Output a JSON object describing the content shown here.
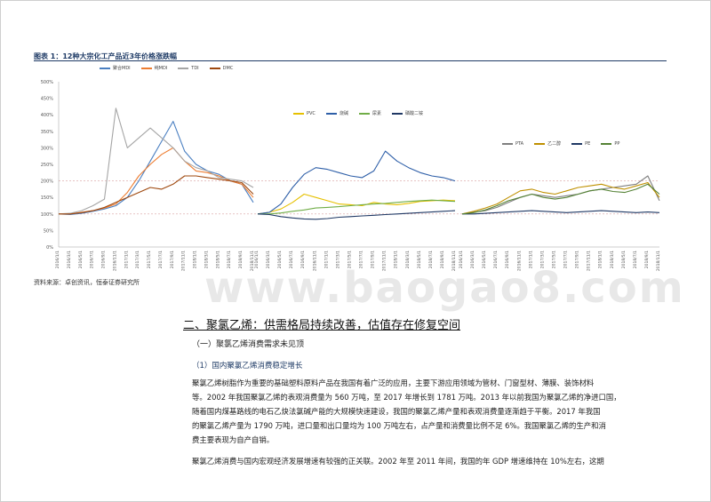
{
  "figure": {
    "title": "图表 1：12种大宗化工产品近3年价格涨跌幅",
    "source": "资料来源：卓创资讯，恒泰证券研究所"
  },
  "chart_data": [
    {
      "type": "line",
      "panel": "left",
      "ylim": [
        0,
        500
      ],
      "yticks": [
        "0%",
        "50%",
        "100%",
        "150%",
        "200%",
        "250%",
        "300%",
        "350%",
        "400%",
        "450%",
        "500%"
      ],
      "categories": [
        "2016/1/1",
        "2016/3/1",
        "2016/5/1",
        "2016/7/1",
        "2016/9/1",
        "2016/11/1",
        "2017/1/1",
        "2017/3/1",
        "2017/5/1",
        "2017/7/1",
        "2017/9/1",
        "2017/11/1",
        "2018/1/1",
        "2018/3/1",
        "2018/5/1",
        "2018/7/1",
        "2018/9/1",
        "2018/11/1"
      ],
      "series": [
        {
          "name": "聚合MDI",
          "color": "#4a7fc1",
          "values": [
            100,
            98,
            102,
            108,
            115,
            125,
            150,
            200,
            260,
            320,
            380,
            290,
            250,
            230,
            220,
            200,
            190,
            135
          ]
        },
        {
          "name": "纯MDI",
          "color": "#ed7d31",
          "values": [
            100,
            100,
            105,
            110,
            118,
            130,
            165,
            215,
            250,
            280,
            300,
            260,
            230,
            225,
            215,
            200,
            190,
            150
          ]
        },
        {
          "name": "TDI",
          "color": "#a5a5a5",
          "values": [
            100,
            102,
            110,
            125,
            145,
            420,
            300,
            330,
            360,
            330,
            300,
            260,
            240,
            230,
            210,
            205,
            200,
            180
          ]
        },
        {
          "name": "DMC",
          "color": "#9e480e",
          "values": [
            100,
            100,
            104,
            110,
            120,
            135,
            150,
            165,
            180,
            175,
            190,
            215,
            215,
            210,
            205,
            200,
            195,
            160
          ]
        }
      ]
    },
    {
      "type": "line",
      "panel": "middle",
      "ylim": [
        0,
        500
      ],
      "categories": [
        "2016/1/1",
        "2016/3/1",
        "2016/5/1",
        "2016/7/1",
        "2016/9/1",
        "2016/11/1",
        "2017/1/1",
        "2017/3/1",
        "2017/5/1",
        "2017/7/1",
        "2017/9/1",
        "2017/11/1",
        "2018/1/1",
        "2018/3/1",
        "2018/5/1",
        "2018/7/1",
        "2018/9/1",
        "2018/11/1"
      ],
      "series": [
        {
          "name": "PVC",
          "color": "#e6c000",
          "values": [
            100,
            105,
            115,
            135,
            160,
            150,
            140,
            130,
            128,
            125,
            135,
            130,
            128,
            132,
            138,
            140,
            142,
            140
          ]
        },
        {
          "name": "烧碱",
          "color": "#2e5fa8",
          "values": [
            100,
            105,
            130,
            180,
            220,
            240,
            235,
            225,
            215,
            210,
            230,
            290,
            260,
            240,
            225,
            215,
            210,
            200
          ]
        },
        {
          "name": "尿素",
          "color": "#70ad47",
          "values": [
            100,
            100,
            103,
            108,
            112,
            118,
            120,
            122,
            125,
            128,
            130,
            132,
            135,
            138,
            140,
            142,
            140,
            138
          ]
        },
        {
          "name": "磷酸二铵",
          "color": "#1f3864",
          "values": [
            100,
            98,
            92,
            88,
            85,
            84,
            86,
            90,
            92,
            94,
            96,
            98,
            100,
            102,
            104,
            106,
            108,
            110
          ]
        }
      ]
    },
    {
      "type": "line",
      "panel": "right",
      "ylim": [
        0,
        500
      ],
      "categories": [
        "2016/1/1",
        "2016/3/1",
        "2016/5/1",
        "2016/7/1",
        "2016/9/1",
        "2016/11/1",
        "2017/1/1",
        "2017/3/1",
        "2017/5/1",
        "2017/7/1",
        "2017/9/1",
        "2017/11/1",
        "2018/1/1",
        "2018/3/1",
        "2018/5/1",
        "2018/7/1",
        "2018/9/1",
        "2018/11/1"
      ],
      "series": [
        {
          "name": "PTA",
          "color": "#7f7f7f",
          "values": [
            100,
            105,
            110,
            120,
            135,
            150,
            160,
            155,
            150,
            155,
            160,
            170,
            175,
            180,
            185,
            190,
            215,
            140
          ]
        },
        {
          "name": "乙二醇",
          "color": "#bf9000",
          "values": [
            100,
            108,
            118,
            130,
            150,
            170,
            175,
            165,
            160,
            170,
            180,
            185,
            190,
            180,
            175,
            185,
            195,
            150
          ]
        },
        {
          "name": "PE",
          "color": "#1f3864",
          "values": [
            100,
            100,
            102,
            104,
            106,
            108,
            110,
            108,
            106,
            104,
            106,
            108,
            110,
            108,
            106,
            104,
            106,
            104
          ]
        },
        {
          "name": "PP",
          "color": "#548235",
          "values": [
            100,
            104,
            112,
            125,
            140,
            150,
            160,
            150,
            145,
            150,
            160,
            170,
            175,
            168,
            165,
            175,
            190,
            160
          ]
        }
      ]
    }
  ],
  "section": {
    "heading": "二、聚氯乙烯：供需格局持续改善，估值存在修复空间",
    "sub1": "（一）聚氯乙烯消费需求未见顶",
    "sub2": "（1）国内聚氯乙烯消费稳定增长",
    "para1_line1": "聚氯乙烯树脂作为重要的基础塑料原料产品在我国有着广泛的应用，主要下游应用领域为管材、门窗型材、薄膜、装饰材料",
    "para1_line2": "等。2002 年我国聚氯乙烯的表观消费量为 560 万吨，至 2017 年增长到 1781 万吨。2013 年以前我国为聚氯乙烯的净进口国，",
    "para1_line3": "随着国内煤基路线的电石乙炔法氯碱产能的大规模快速建设，我国的聚氯乙烯产量和表观消费量逐渐趋于平衡。2017 年我国",
    "para1_line4": "的聚氯乙烯产量为 1790 万吨，进口量和出口量均为 100 万吨左右，占产量和消费量比例不足 6%。我国聚氯乙烯的生产和消",
    "para1_line5": "费主要表现为自产自销。",
    "para2_line1": "聚氯乙烯消费与国内宏观经济发展增速有较强的正关联。2002 年至 2011 年间，我国的年 GDP 增速维持在 10%左右，这期"
  },
  "watermark": "www.baogao8.com"
}
